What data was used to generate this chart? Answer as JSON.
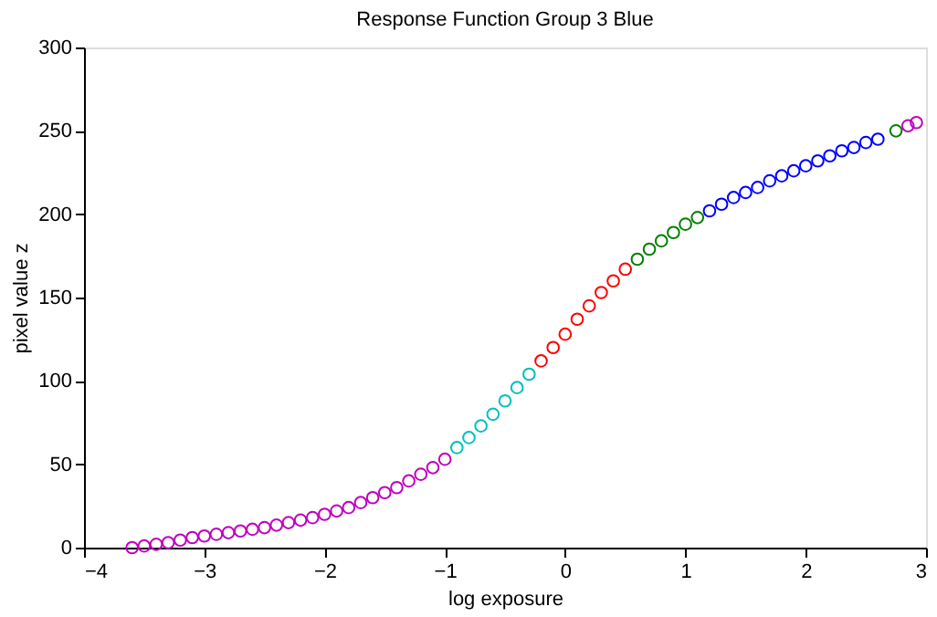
{
  "chart_data": {
    "type": "scatter",
    "title": "Response Function Group 3 Blue",
    "xlabel": "log exposure",
    "ylabel": "pixel value z",
    "xlim": [
      -4,
      3
    ],
    "xticks": [
      -4,
      -3,
      -2,
      -1,
      0,
      1,
      2,
      3
    ],
    "ylim": [
      0,
      300
    ],
    "yticks": [
      0,
      50,
      100,
      150,
      200,
      250,
      300
    ],
    "grid": false,
    "legend": false,
    "marker": "circle",
    "series": [
      {
        "color": "#bf00bf",
        "x": [
          -3.6,
          -3.5,
          -3.4,
          -3.3,
          -3.2,
          -3.1,
          -3.0,
          -2.9,
          -2.8,
          -2.7,
          -2.6,
          -2.5,
          -2.4,
          -2.3,
          -2.2,
          -2.1,
          -2.0,
          -1.9,
          -1.8,
          -1.7,
          -1.6,
          -1.5,
          -1.4,
          -1.3,
          -1.2,
          -1.1,
          -1.0
        ],
        "values": [
          0,
          1,
          2,
          3,
          4.5,
          6,
          7,
          8,
          9,
          10,
          11,
          12,
          13.5,
          15,
          16.5,
          18,
          20,
          22,
          24,
          27,
          30,
          33,
          36,
          40,
          44,
          48,
          53
        ]
      },
      {
        "color": "#00bfbf",
        "x": [
          -0.9,
          -0.8,
          -0.7,
          -0.6,
          -0.5,
          -0.4,
          -0.3
        ],
        "values": [
          60,
          66,
          73,
          80,
          88,
          96,
          104
        ]
      },
      {
        "color": "#ff0000",
        "x": [
          -0.2,
          -0.1,
          0.0,
          0.1,
          0.2,
          0.3,
          0.4,
          0.5
        ],
        "values": [
          112,
          120,
          128,
          137,
          145,
          153,
          160,
          167
        ]
      },
      {
        "color": "#008000",
        "x": [
          0.6,
          0.7,
          0.8,
          0.9,
          1.0,
          1.1
        ],
        "values": [
          173,
          179,
          184,
          189,
          194,
          198
        ]
      },
      {
        "color": "#0000ff",
        "x": [
          1.2,
          1.3,
          1.4,
          1.5,
          1.6,
          1.7,
          1.8,
          1.9,
          2.0,
          2.1,
          2.2,
          2.3,
          2.4,
          2.5,
          2.6
        ],
        "values": [
          202,
          206,
          210,
          213,
          216,
          220,
          223,
          226,
          229,
          232,
          235,
          238,
          240,
          243,
          245
        ]
      },
      {
        "color": "#008000",
        "x": [
          2.75
        ],
        "values": [
          250
        ]
      },
      {
        "color": "#bf00bf",
        "x": [
          2.85,
          2.92
        ],
        "values": [
          253,
          255
        ]
      }
    ]
  }
}
